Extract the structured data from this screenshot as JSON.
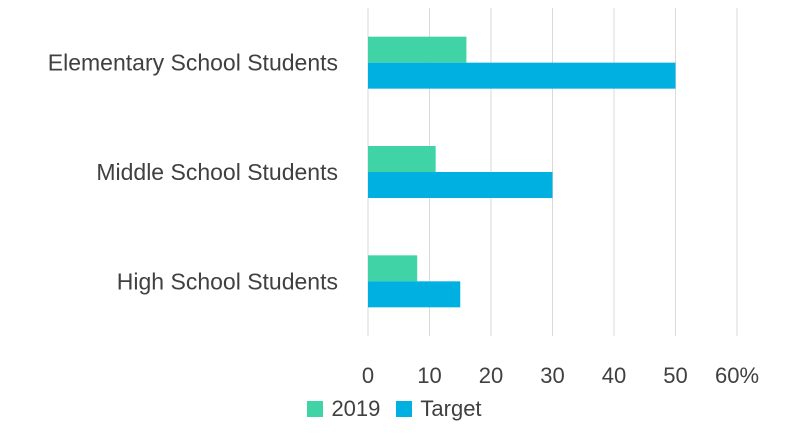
{
  "chart_data": {
    "type": "bar",
    "orientation": "horizontal",
    "categories": [
      "Elementary School Students",
      "Middle School Students",
      "High School Students"
    ],
    "series": [
      {
        "name": "2019",
        "values": [
          16,
          11,
          8
        ],
        "color": "#3fd3a5"
      },
      {
        "name": "Target",
        "values": [
          50,
          30,
          15
        ],
        "color": "#00b0e0"
      }
    ],
    "xlim": [
      0,
      60
    ],
    "ticks": [
      "0",
      "10",
      "20",
      "30",
      "40",
      "50",
      "60%"
    ],
    "grid": true,
    "legend_position": "bottom"
  }
}
